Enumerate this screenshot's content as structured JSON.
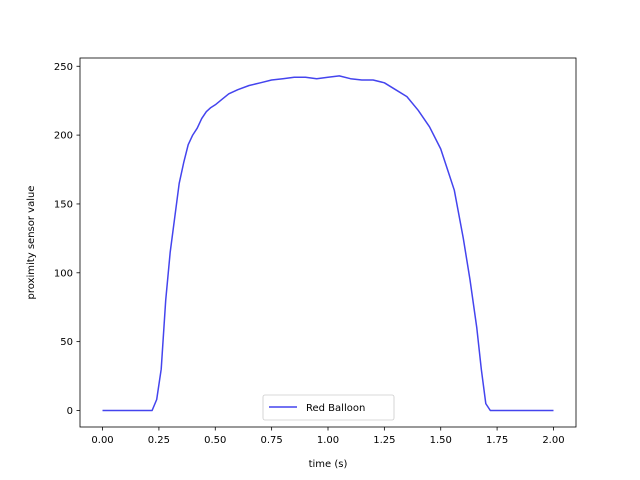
{
  "chart_data": {
    "type": "line",
    "title": "",
    "xlabel": "time (s)",
    "ylabel": "proximity sensor value",
    "xlim": [
      -0.1,
      2.1
    ],
    "ylim": [
      -12,
      256
    ],
    "x_ticks": [
      0.0,
      0.25,
      0.5,
      0.75,
      1.0,
      1.25,
      1.5,
      1.75,
      2.0
    ],
    "x_tick_labels": [
      "0.00",
      "0.25",
      "0.50",
      "0.75",
      "1.00",
      "1.25",
      "1.50",
      "1.75",
      "2.00"
    ],
    "y_ticks": [
      0,
      50,
      100,
      150,
      200,
      250
    ],
    "y_tick_labels": [
      "0",
      "50",
      "100",
      "150",
      "200",
      "250"
    ],
    "grid": false,
    "legend_position": "lower center",
    "series": [
      {
        "name": "Red Balloon",
        "color": "#4444ee",
        "x": [
          0.0,
          0.1,
          0.2,
          0.22,
          0.24,
          0.26,
          0.28,
          0.3,
          0.32,
          0.34,
          0.36,
          0.38,
          0.4,
          0.42,
          0.44,
          0.46,
          0.48,
          0.5,
          0.53,
          0.56,
          0.6,
          0.65,
          0.7,
          0.75,
          0.8,
          0.85,
          0.9,
          0.95,
          1.0,
          1.05,
          1.1,
          1.15,
          1.2,
          1.25,
          1.3,
          1.35,
          1.4,
          1.45,
          1.5,
          1.53,
          1.56,
          1.6,
          1.63,
          1.66,
          1.68,
          1.7,
          1.72,
          1.75,
          1.8,
          1.9,
          2.0
        ],
        "y": [
          0,
          0,
          0,
          0,
          8,
          30,
          80,
          115,
          140,
          165,
          180,
          193,
          200,
          205,
          212,
          217,
          220,
          222,
          226,
          230,
          233,
          236,
          238,
          240,
          241,
          242,
          242,
          241,
          242,
          243,
          241,
          240,
          240,
          238,
          233,
          228,
          218,
          206,
          190,
          175,
          160,
          125,
          95,
          60,
          30,
          5,
          0,
          0,
          0,
          0,
          0
        ]
      }
    ]
  }
}
